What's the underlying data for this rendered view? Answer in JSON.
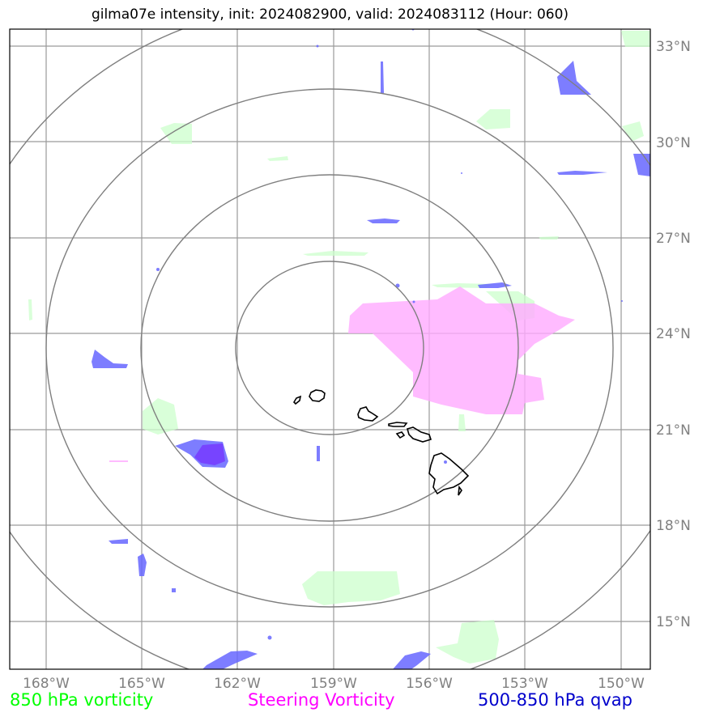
{
  "title": "gilma07e intensity, init: 2024082900, valid: 2024083112 (Hour: 060)",
  "legend": {
    "left": "850 hPa vorticity",
    "middle": "Steering Vorticity",
    "right": "500-850 hPa qvap"
  },
  "axes": {
    "lon_labels": [
      "168°W",
      "165°W",
      "162°W",
      "159°W",
      "156°W",
      "153°W",
      "150°W"
    ],
    "lat_labels": [
      "33°N",
      "30°N",
      "27°N",
      "24°N",
      "21°N",
      "18°N",
      "15°N"
    ]
  },
  "colors": {
    "vorticity_850": "#ccffcc",
    "steering_vorticity": "#ffaaff",
    "qvap": "#6666ff",
    "grid": "#808080",
    "coast": "#000000"
  }
}
